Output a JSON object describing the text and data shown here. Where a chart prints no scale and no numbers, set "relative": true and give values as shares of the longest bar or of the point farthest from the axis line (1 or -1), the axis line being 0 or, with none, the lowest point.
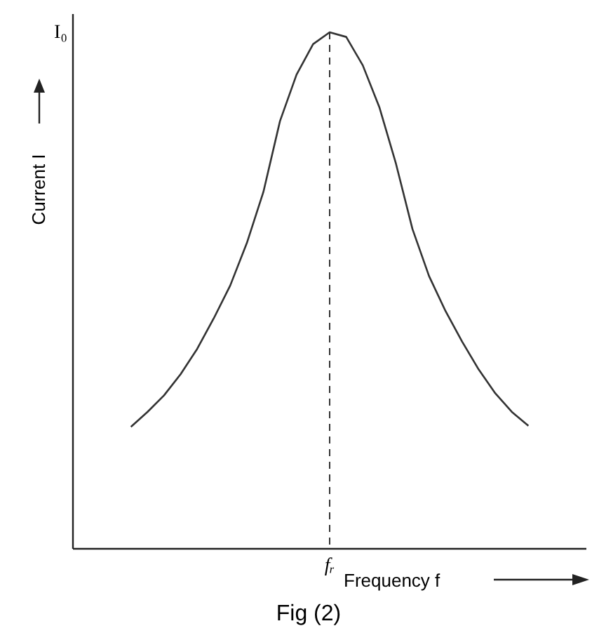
{
  "chart_data": {
    "type": "line",
    "relative": true,
    "xlabel": "Frequency f",
    "ylabel": "Current I",
    "categories": [
      null,
      null,
      null,
      null,
      null,
      null,
      null,
      null,
      null,
      null,
      null,
      null,
      null,
      null,
      null,
      null,
      null,
      null,
      null,
      null,
      null,
      null,
      null,
      null,
      null
    ],
    "series": [
      {
        "color": "#333333",
        "values": [
          0.236,
          0.265,
          0.297,
          0.338,
          0.387,
          0.446,
          0.51,
          0.592,
          0.691,
          0.828,
          0.918,
          0.977,
          1,
          0.991,
          0.936,
          0.855,
          0.746,
          0.619,
          0.528,
          0.46,
          0.401,
          0.347,
          0.301,
          0.265,
          0.238
        ]
      }
    ],
    "annotations": [
      "I₀",
      "fᵣ",
      "Fig (2)"
    ],
    "marker": "none",
    "line_style": "solid"
  }
}
